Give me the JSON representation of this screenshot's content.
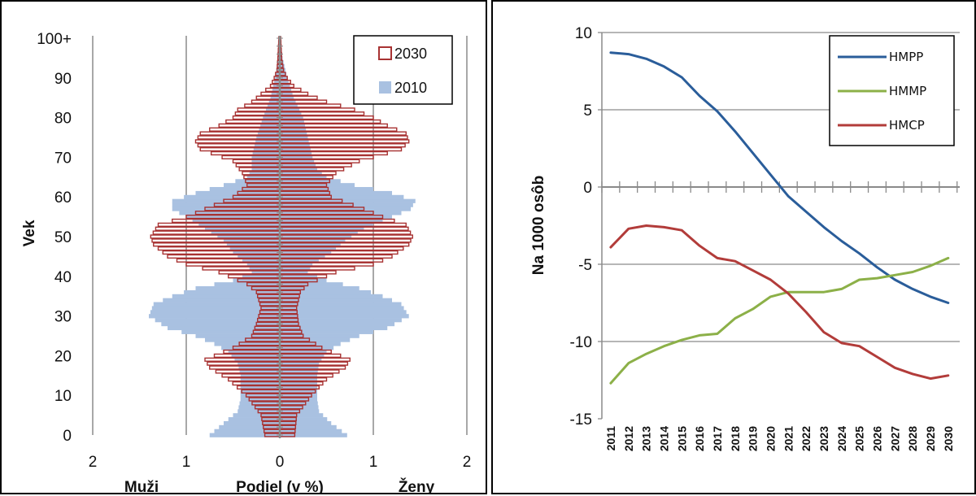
{
  "chart_data": [
    {
      "type": "bar",
      "subtype": "population-pyramid",
      "ylabel": "Vek",
      "xlabel": "Podiel (v %)",
      "left_side_label": "Muži",
      "right_side_label": "Ženy",
      "x_tick_labels": [
        "2",
        "1",
        "0",
        "1",
        "2"
      ],
      "xlim": [
        -2,
        2
      ],
      "y_tick_labels": [
        "0",
        "10",
        "20",
        "30",
        "40",
        "50",
        "60",
        "70",
        "80",
        "90",
        "100+"
      ],
      "ylim": [
        0,
        100
      ],
      "grid": true,
      "legend_position": "top-right",
      "colors": {
        "outline_2030": "#a83232",
        "fill_2010": "#a9c1e1"
      },
      "series": [
        {
          "name": "2030",
          "style": "outline",
          "anchors_age": [
            0,
            5,
            10,
            14,
            17,
            19,
            22,
            25,
            28,
            32,
            36,
            38,
            41,
            43,
            45,
            48,
            50,
            53,
            55,
            57,
            60,
            63,
            66,
            69,
            72,
            74,
            76,
            78,
            80,
            82,
            84,
            86,
            88,
            90,
            92,
            95,
            100
          ],
          "male": [
            0.16,
            0.2,
            0.36,
            0.55,
            0.75,
            0.8,
            0.5,
            0.3,
            0.25,
            0.2,
            0.25,
            0.35,
            0.65,
            1.0,
            1.2,
            1.35,
            1.38,
            1.3,
            1.0,
            0.8,
            0.5,
            0.35,
            0.4,
            0.5,
            0.85,
            0.9,
            0.85,
            0.65,
            0.5,
            0.45,
            0.3,
            0.2,
            0.1,
            0.06,
            0.03,
            0.02,
            0.01
          ],
          "female": [
            0.16,
            0.18,
            0.34,
            0.5,
            0.7,
            0.75,
            0.45,
            0.25,
            0.2,
            0.18,
            0.22,
            0.3,
            0.6,
            1.0,
            1.2,
            1.38,
            1.42,
            1.35,
            1.1,
            0.9,
            0.55,
            0.5,
            0.6,
            0.85,
            1.3,
            1.38,
            1.35,
            1.15,
            1.0,
            0.8,
            0.5,
            0.3,
            0.15,
            0.08,
            0.04,
            0.02,
            0.01
          ]
        },
        {
          "name": "2010",
          "style": "fill",
          "anchors_age": [
            0,
            3,
            6,
            9,
            12,
            15,
            18,
            21,
            23,
            25,
            27,
            30,
            33,
            35,
            37,
            39,
            41,
            43,
            46,
            49,
            52,
            55,
            57,
            59,
            61,
            63,
            65,
            67,
            70,
            75,
            80,
            85,
            90,
            95,
            100
          ],
          "male": [
            0.75,
            0.6,
            0.45,
            0.42,
            0.42,
            0.42,
            0.45,
            0.55,
            0.7,
            0.9,
            1.2,
            1.4,
            1.35,
            1.15,
            0.9,
            0.5,
            0.3,
            0.35,
            0.5,
            0.6,
            0.8,
            1.0,
            1.15,
            1.15,
            0.9,
            0.6,
            0.35,
            0.3,
            0.3,
            0.25,
            0.18,
            0.1,
            0.05,
            0.02,
            0.01
          ],
          "female": [
            0.72,
            0.55,
            0.42,
            0.4,
            0.4,
            0.4,
            0.42,
            0.5,
            0.65,
            0.85,
            1.15,
            1.38,
            1.3,
            1.1,
            0.85,
            0.5,
            0.3,
            0.35,
            0.55,
            0.7,
            0.9,
            1.2,
            1.4,
            1.45,
            1.2,
            0.8,
            0.5,
            0.4,
            0.35,
            0.3,
            0.25,
            0.15,
            0.08,
            0.03,
            0.01
          ]
        }
      ]
    },
    {
      "type": "line",
      "ylabel": "Na 1000 osôb",
      "xlabel": "",
      "x": [
        "2011",
        "2012",
        "2013",
        "2014",
        "2015",
        "2016",
        "2017",
        "2018",
        "2019",
        "2020",
        "2021",
        "2022",
        "2023",
        "2024",
        "2025",
        "2026",
        "2027",
        "2028",
        "2029",
        "2030"
      ],
      "ylim": [
        -15,
        10
      ],
      "y_ticks": [
        -15,
        -10,
        -5,
        0,
        5,
        10
      ],
      "grid": true,
      "legend_position": "top-right",
      "series": [
        {
          "name": "HMPP",
          "color": "#2a5d9a",
          "values": [
            8.7,
            8.6,
            8.3,
            7.8,
            7.1,
            5.9,
            4.9,
            3.6,
            2.2,
            0.8,
            -0.6,
            -1.6,
            -2.6,
            -3.5,
            -4.3,
            -5.2,
            -6.0,
            -6.6,
            -7.1,
            -7.5
          ]
        },
        {
          "name": "HMMP",
          "color": "#8cb048",
          "values": [
            -12.7,
            -11.4,
            -10.8,
            -10.3,
            -9.9,
            -9.6,
            -9.5,
            -8.5,
            -7.9,
            -7.1,
            -6.8,
            -6.8,
            -6.8,
            -6.6,
            -6.0,
            -5.9,
            -5.7,
            -5.5,
            -5.1,
            -4.6
          ]
        },
        {
          "name": "HMCP",
          "color": "#b23c3a",
          "values": [
            -3.9,
            -2.7,
            -2.5,
            -2.6,
            -2.8,
            -3.8,
            -4.6,
            -4.8,
            -5.4,
            -6.0,
            -6.9,
            -8.1,
            -9.4,
            -10.1,
            -10.3,
            -11.0,
            -11.7,
            -12.1,
            -12.4,
            -12.2
          ]
        }
      ]
    }
  ]
}
